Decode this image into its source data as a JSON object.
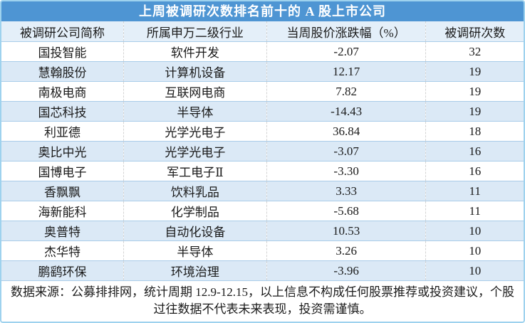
{
  "chart_data": {
    "type": "table",
    "title": "上周被调研次数排名前十的 A 股上市公司",
    "columns": [
      "被调研公司简称",
      "所属申万二级行业",
      "当周股价涨跌幅（%）",
      "被调研次数"
    ],
    "rows": [
      [
        "国投智能",
        "软件开发",
        "-2.07",
        "32"
      ],
      [
        "慧翰股份",
        "计算机设备",
        "12.17",
        "19"
      ],
      [
        "南极电商",
        "互联网电商",
        "7.82",
        "19"
      ],
      [
        "国芯科技",
        "半导体",
        "-14.43",
        "19"
      ],
      [
        "利亚德",
        "光学光电子",
        "36.84",
        "18"
      ],
      [
        "奥比中光",
        "光学光电子",
        "-3.07",
        "16"
      ],
      [
        "国博电子",
        "军工电子Ⅱ",
        "-3.30",
        "16"
      ],
      [
        "香飘飘",
        "饮料乳品",
        "3.33",
        "11"
      ],
      [
        "海新能科",
        "化学制品",
        "-5.68",
        "11"
      ],
      [
        "奥普特",
        "自动化设备",
        "10.53",
        "10"
      ],
      [
        "杰华特",
        "半导体",
        "3.26",
        "10"
      ],
      [
        "鹏鹞环保",
        "环境治理",
        "-3.96",
        "10"
      ]
    ],
    "footnote": "数据来源：公募排排网，统计周期 12.9-12.15，以上信息不构成任何股票推荐或投资建议，个股过往数据不代表未来表现，投资需谨慎。",
    "legend_position": "none",
    "grid": "on"
  },
  "colors": {
    "title_bar_bg": "#4E95D3",
    "title_text": "#FFFFFF",
    "header_row_bg": "#E4EFF9",
    "zebra_row_bg": "#DBE9F6",
    "row_line": "#A9CCE9",
    "column_separator": "#D4D4D4",
    "outer_border": "#9ED2EE",
    "body_text": "#1A1A1A"
  }
}
